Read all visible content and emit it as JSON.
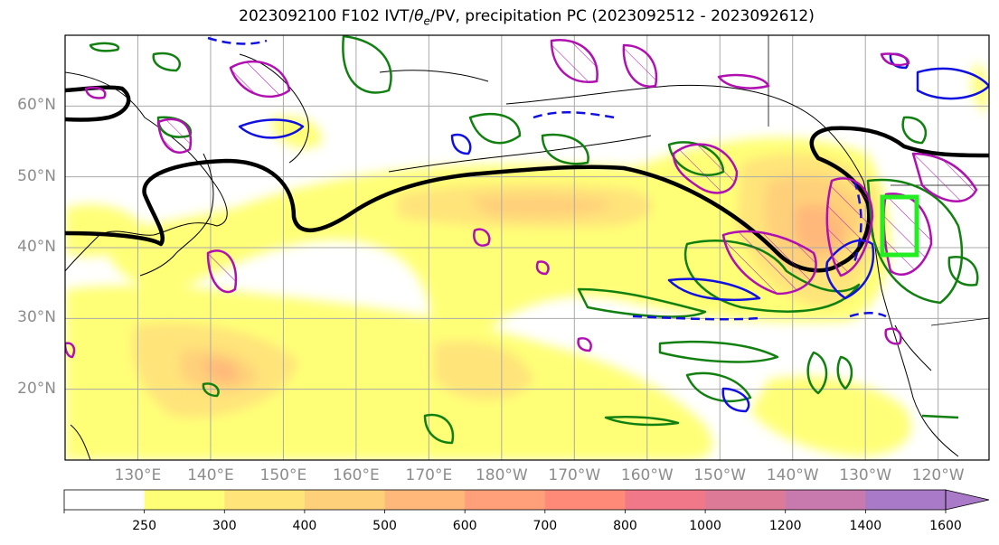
{
  "title": {
    "prefix": "2023092100 F102 IVT/",
    "theta": "θ",
    "theta_sub": "e",
    "suffix": "/PV, precipitation PC (2023092512 - 2023092612)"
  },
  "colors": {
    "frame": "#000000",
    "grid": "#a9a9a9",
    "coast": "#000000",
    "jet": "#000000",
    "green_contour": "#118011",
    "blue_contour": "#1010e0",
    "magenta_contour": "#b010b0",
    "box": "#22ee22"
  },
  "lat_labels": [
    "60°N",
    "50°N",
    "40°N",
    "30°N",
    "20°N"
  ],
  "lat_values": [
    60,
    50,
    40,
    30,
    20
  ],
  "lon_labels": [
    "130°E",
    "140°E",
    "150°E",
    "160°E",
    "170°E",
    "180°W",
    "170°W",
    "160°W",
    "150°W",
    "140°W",
    "130°W",
    "120°W"
  ],
  "lon_values": [
    130,
    140,
    150,
    160,
    170,
    180,
    190,
    200,
    210,
    220,
    230,
    240
  ],
  "map_extent": {
    "lon_min": 120,
    "lon_max": 247,
    "lat_min": 10,
    "lat_max": 70
  },
  "colorbar": {
    "levels": [
      250,
      300,
      400,
      500,
      600,
      700,
      800,
      1000,
      1200,
      1400,
      1600
    ],
    "tick_labels": [
      "250",
      "300",
      "400",
      "500",
      "600",
      "700",
      "800",
      "1000",
      "1200",
      "1400",
      "1600"
    ],
    "colors": [
      "#ffffff",
      "#ffff77",
      "#ffe47a",
      "#ffd07a",
      "#ffb87a",
      "#ffa07a",
      "#ff8a78",
      "#f07888",
      "#dd7a98",
      "#c87aae",
      "#a87ac8"
    ],
    "extend": "max"
  }
}
